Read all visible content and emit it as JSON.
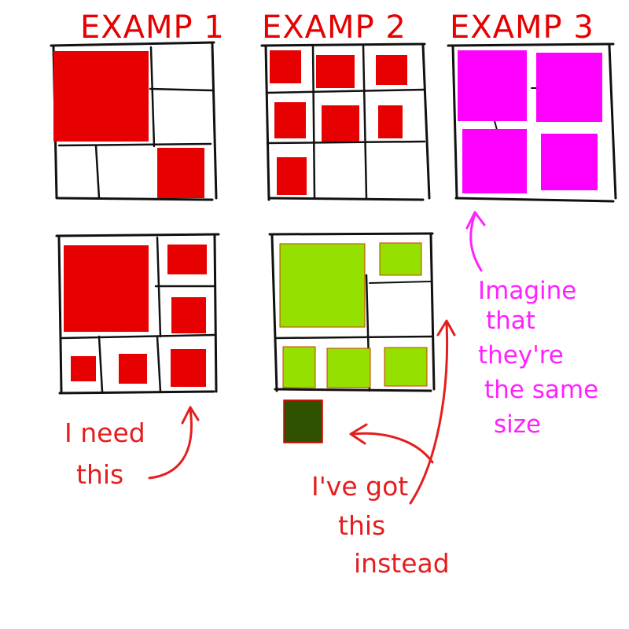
{
  "colors": {
    "red": "#e60000",
    "magenta": "#ff00ff",
    "lime": "#96e000",
    "dark_green": "#2e5200",
    "ink": "#111111",
    "arrow_red": "#e41e1e",
    "arrow_magenta": "#ff22ff"
  },
  "titles": {
    "example_1": "EXAMP 1",
    "example_2": "EXAMP 2",
    "example_3": "EXAMP 3"
  },
  "annotations": {
    "need": {
      "line1": "I need",
      "line2": "this"
    },
    "got": {
      "line1": "I've got",
      "line2": "this",
      "line3": "instead"
    },
    "imagine": {
      "line1": "Imagine",
      "line2": "that",
      "line3": "they're",
      "line4": "the same",
      "line5": "size"
    }
  },
  "icons": [
    "curved-arrow-icon"
  ]
}
